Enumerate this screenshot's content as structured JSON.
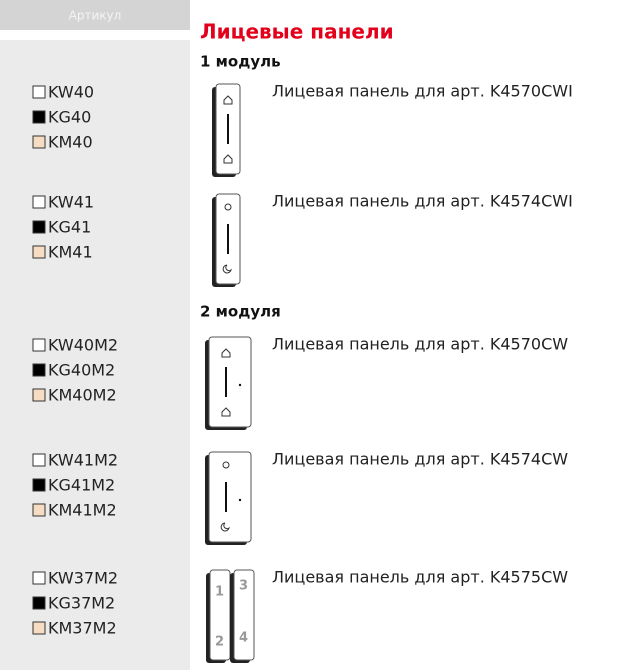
{
  "header": {
    "column_label": "Артикул",
    "title": "Лицевые панели"
  },
  "sections": [
    {
      "title": "1 модуль",
      "items": [
        {
          "codes": [
            "KW40",
            "KG40",
            "KM40"
          ],
          "description": "Лицевая панель для арт. K4570CWI"
        },
        {
          "codes": [
            "KW41",
            "KG41",
            "KM41"
          ],
          "description": "Лицевая панель для арт. K4574CWI"
        }
      ]
    },
    {
      "title": "2 модуля",
      "items": [
        {
          "codes": [
            "KW40M2",
            "KG40M2",
            "KM40M2"
          ],
          "description": "Лицевая панель для арт. K4570CW"
        },
        {
          "codes": [
            "KW41M2",
            "KG41M2",
            "KM41M2"
          ],
          "description": "Лицевая панель для арт. K4574CW"
        },
        {
          "codes": [
            "KW37M2",
            "KG37M2",
            "KM37M2"
          ],
          "description": "Лицевая панель для арт. K4575CW",
          "image_labels": [
            "1",
            "2",
            "3",
            "4"
          ]
        }
      ]
    }
  ]
}
